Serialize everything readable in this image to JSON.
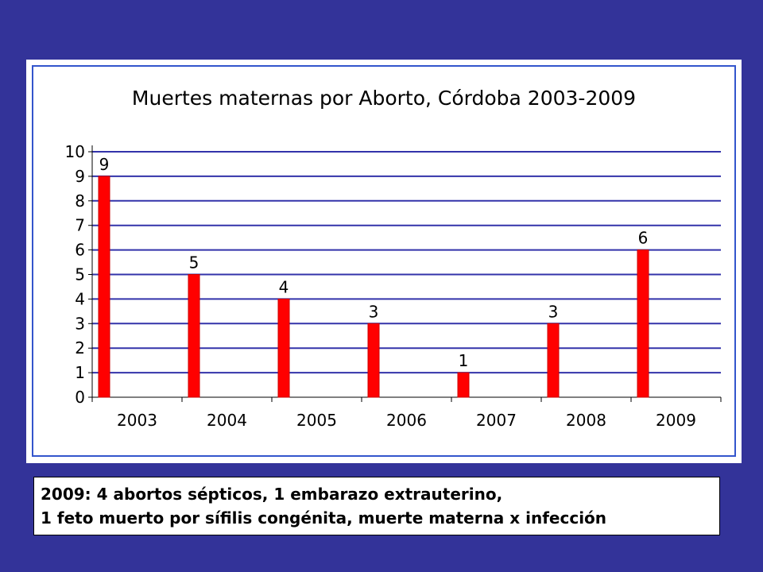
{
  "chart_data": {
    "type": "bar",
    "title": "Muertes maternas por Aborto, Córdoba 2003-2009",
    "xlabel": "",
    "ylabel": "",
    "categories": [
      "2003",
      "2004",
      "2005",
      "2006",
      "2007",
      "2008",
      "2009"
    ],
    "values": [
      9,
      5,
      4,
      3,
      1,
      3,
      6
    ],
    "data_labels": [
      "9",
      "5",
      "4",
      "3",
      "1",
      "3",
      "6"
    ],
    "ylim": [
      0,
      10
    ],
    "yticks": [
      "0",
      "1",
      "2",
      "3",
      "4",
      "5",
      "6",
      "7",
      "8",
      "9",
      "10"
    ],
    "grid": true,
    "legend": "none",
    "bar_color": "#ff0000",
    "grid_color": "#3333aa",
    "frame_color": "#3355cc"
  },
  "note": {
    "line1": "2009: 4 abortos sépticos, 1 embarazo extrauterino,",
    "line2": "1 feto muerto  por sífilis congénita, muerte materna x infección"
  }
}
